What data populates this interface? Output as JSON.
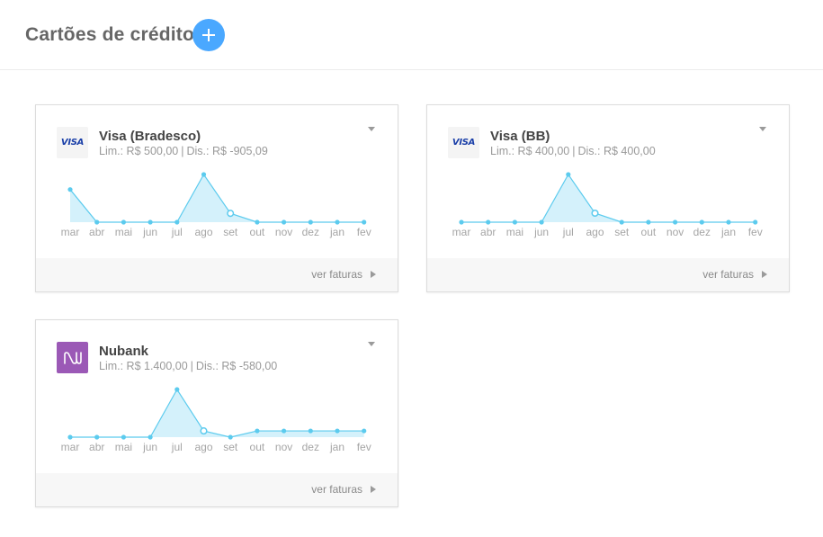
{
  "header": {
    "title": "Cartões de crédito",
    "add_icon": "plus-icon",
    "accent_color": "#4aa8ff"
  },
  "cards": [
    {
      "name": "Visa (Bradesco)",
      "logo": "visa-logo",
      "logo_text": "VISA",
      "limit_label": "Lim.: R$ 500,00",
      "available_label": "Dis.: R$ -905,09",
      "footer_link": "ver faturas",
      "chart_data": {
        "type": "area",
        "categories": [
          "mar",
          "abr",
          "mai",
          "jun",
          "jul",
          "ago",
          "set",
          "out",
          "nov",
          "dez",
          "jan",
          "fev"
        ],
        "values": [
          37,
          0,
          0,
          0,
          0,
          54,
          10,
          0,
          0,
          0,
          0,
          0
        ],
        "highlight_index": 6,
        "ylim": [
          0,
          54
        ]
      }
    },
    {
      "name": "Visa (BB)",
      "logo": "visa-logo",
      "logo_text": "VISA",
      "limit_label": "Lim.: R$ 400,00",
      "available_label": "Dis.: R$ 400,00",
      "footer_link": "ver faturas",
      "chart_data": {
        "type": "area",
        "categories": [
          "mar",
          "abr",
          "mai",
          "jun",
          "jul",
          "ago",
          "set",
          "out",
          "nov",
          "dez",
          "jan",
          "fev"
        ],
        "values": [
          0,
          0,
          0,
          0,
          53,
          10,
          0,
          0,
          0,
          0,
          0,
          0
        ],
        "highlight_index": 5,
        "ylim": [
          0,
          53
        ]
      }
    },
    {
      "name": "Nubank",
      "logo": "nubank-logo",
      "limit_label": "Lim.: R$ 1.400,00",
      "available_label": "Dis.: R$ -580,00",
      "footer_link": "ver faturas",
      "chart_data": {
        "type": "area",
        "categories": [
          "mar",
          "abr",
          "mai",
          "jun",
          "jul",
          "ago",
          "set",
          "out",
          "nov",
          "dez",
          "jan",
          "fev"
        ],
        "values": [
          0,
          0,
          0,
          0,
          46,
          6,
          0,
          6,
          6,
          6,
          6,
          6
        ],
        "highlight_index": 5,
        "ylim": [
          0,
          46
        ]
      }
    }
  ],
  "colors": {
    "chart_line": "#5ccbee",
    "chart_fill": "#d4f1fb",
    "chart_point": "#5ccbee"
  }
}
